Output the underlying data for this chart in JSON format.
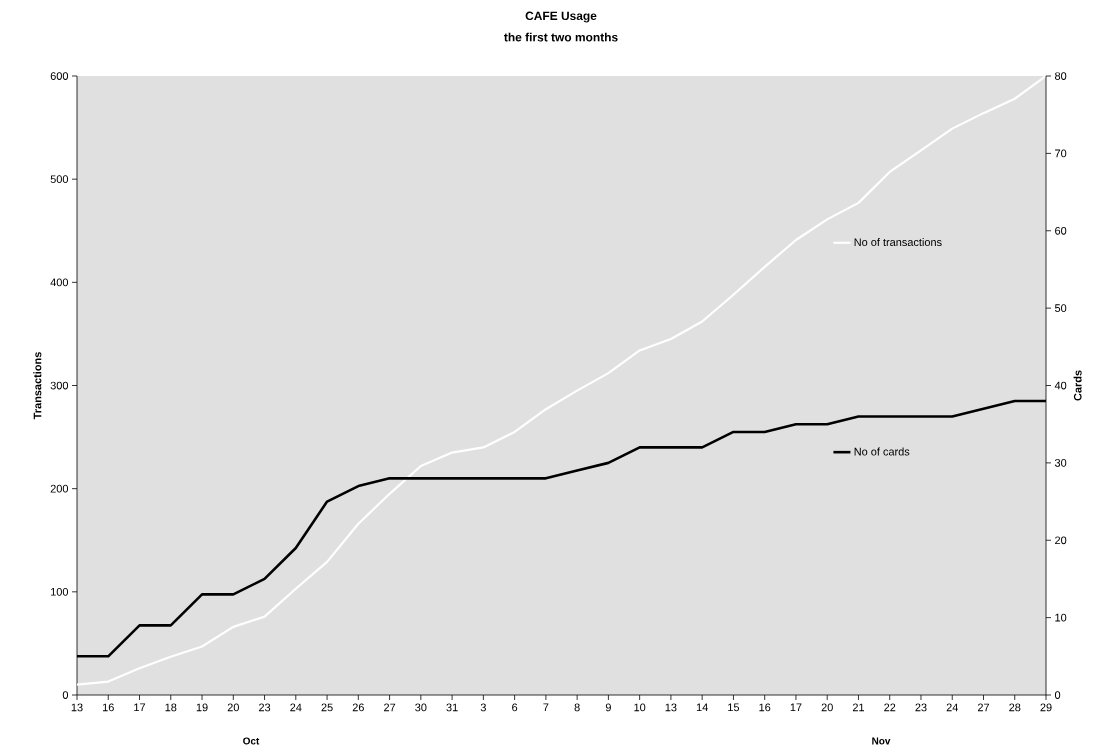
{
  "chart_data": {
    "type": "line",
    "title": "CAFE Usage",
    "subtitle": "the first two months",
    "ylabel": "Transactions",
    "y2label": "Cards",
    "categories": [
      "13",
      "16",
      "17",
      "18",
      "19",
      "20",
      "23",
      "24",
      "25",
      "26",
      "27",
      "30",
      "31",
      "3",
      "6",
      "7",
      "8",
      "9",
      "10",
      "13",
      "14",
      "15",
      "16",
      "17",
      "20",
      "21",
      "22",
      "23",
      "24",
      "27",
      "28",
      "29"
    ],
    "series": [
      {
        "name": "No of transactions",
        "color": "#ffffff",
        "axis": "y",
        "values": [
          10,
          13,
          26,
          37,
          47,
          66,
          76,
          103,
          129,
          166,
          195,
          222,
          235,
          240,
          255,
          277,
          295,
          312,
          334,
          345,
          362,
          388,
          415,
          441,
          461,
          477,
          507,
          528,
          549,
          564,
          578,
          600
        ]
      },
      {
        "name": "No of cards",
        "color": "#000000",
        "axis": "y2",
        "values": [
          5,
          5,
          9,
          9,
          13,
          13,
          15,
          19,
          25,
          27,
          28,
          28,
          28,
          28,
          28,
          28,
          29,
          30,
          32,
          32,
          32,
          34,
          34,
          35,
          35,
          36,
          36,
          36,
          36,
          37,
          38,
          38
        ]
      }
    ],
    "ylim": [
      0,
      600
    ],
    "yticks": [
      0,
      100,
      200,
      300,
      400,
      500,
      600
    ],
    "y2lim": [
      0,
      80
    ],
    "y2ticks": [
      0,
      10,
      20,
      30,
      40,
      50,
      60,
      70,
      80
    ],
    "annotations": [
      "Oct",
      "Nov"
    ],
    "legend": "right",
    "grid": false,
    "marker": "none",
    "line_style": "solid"
  }
}
